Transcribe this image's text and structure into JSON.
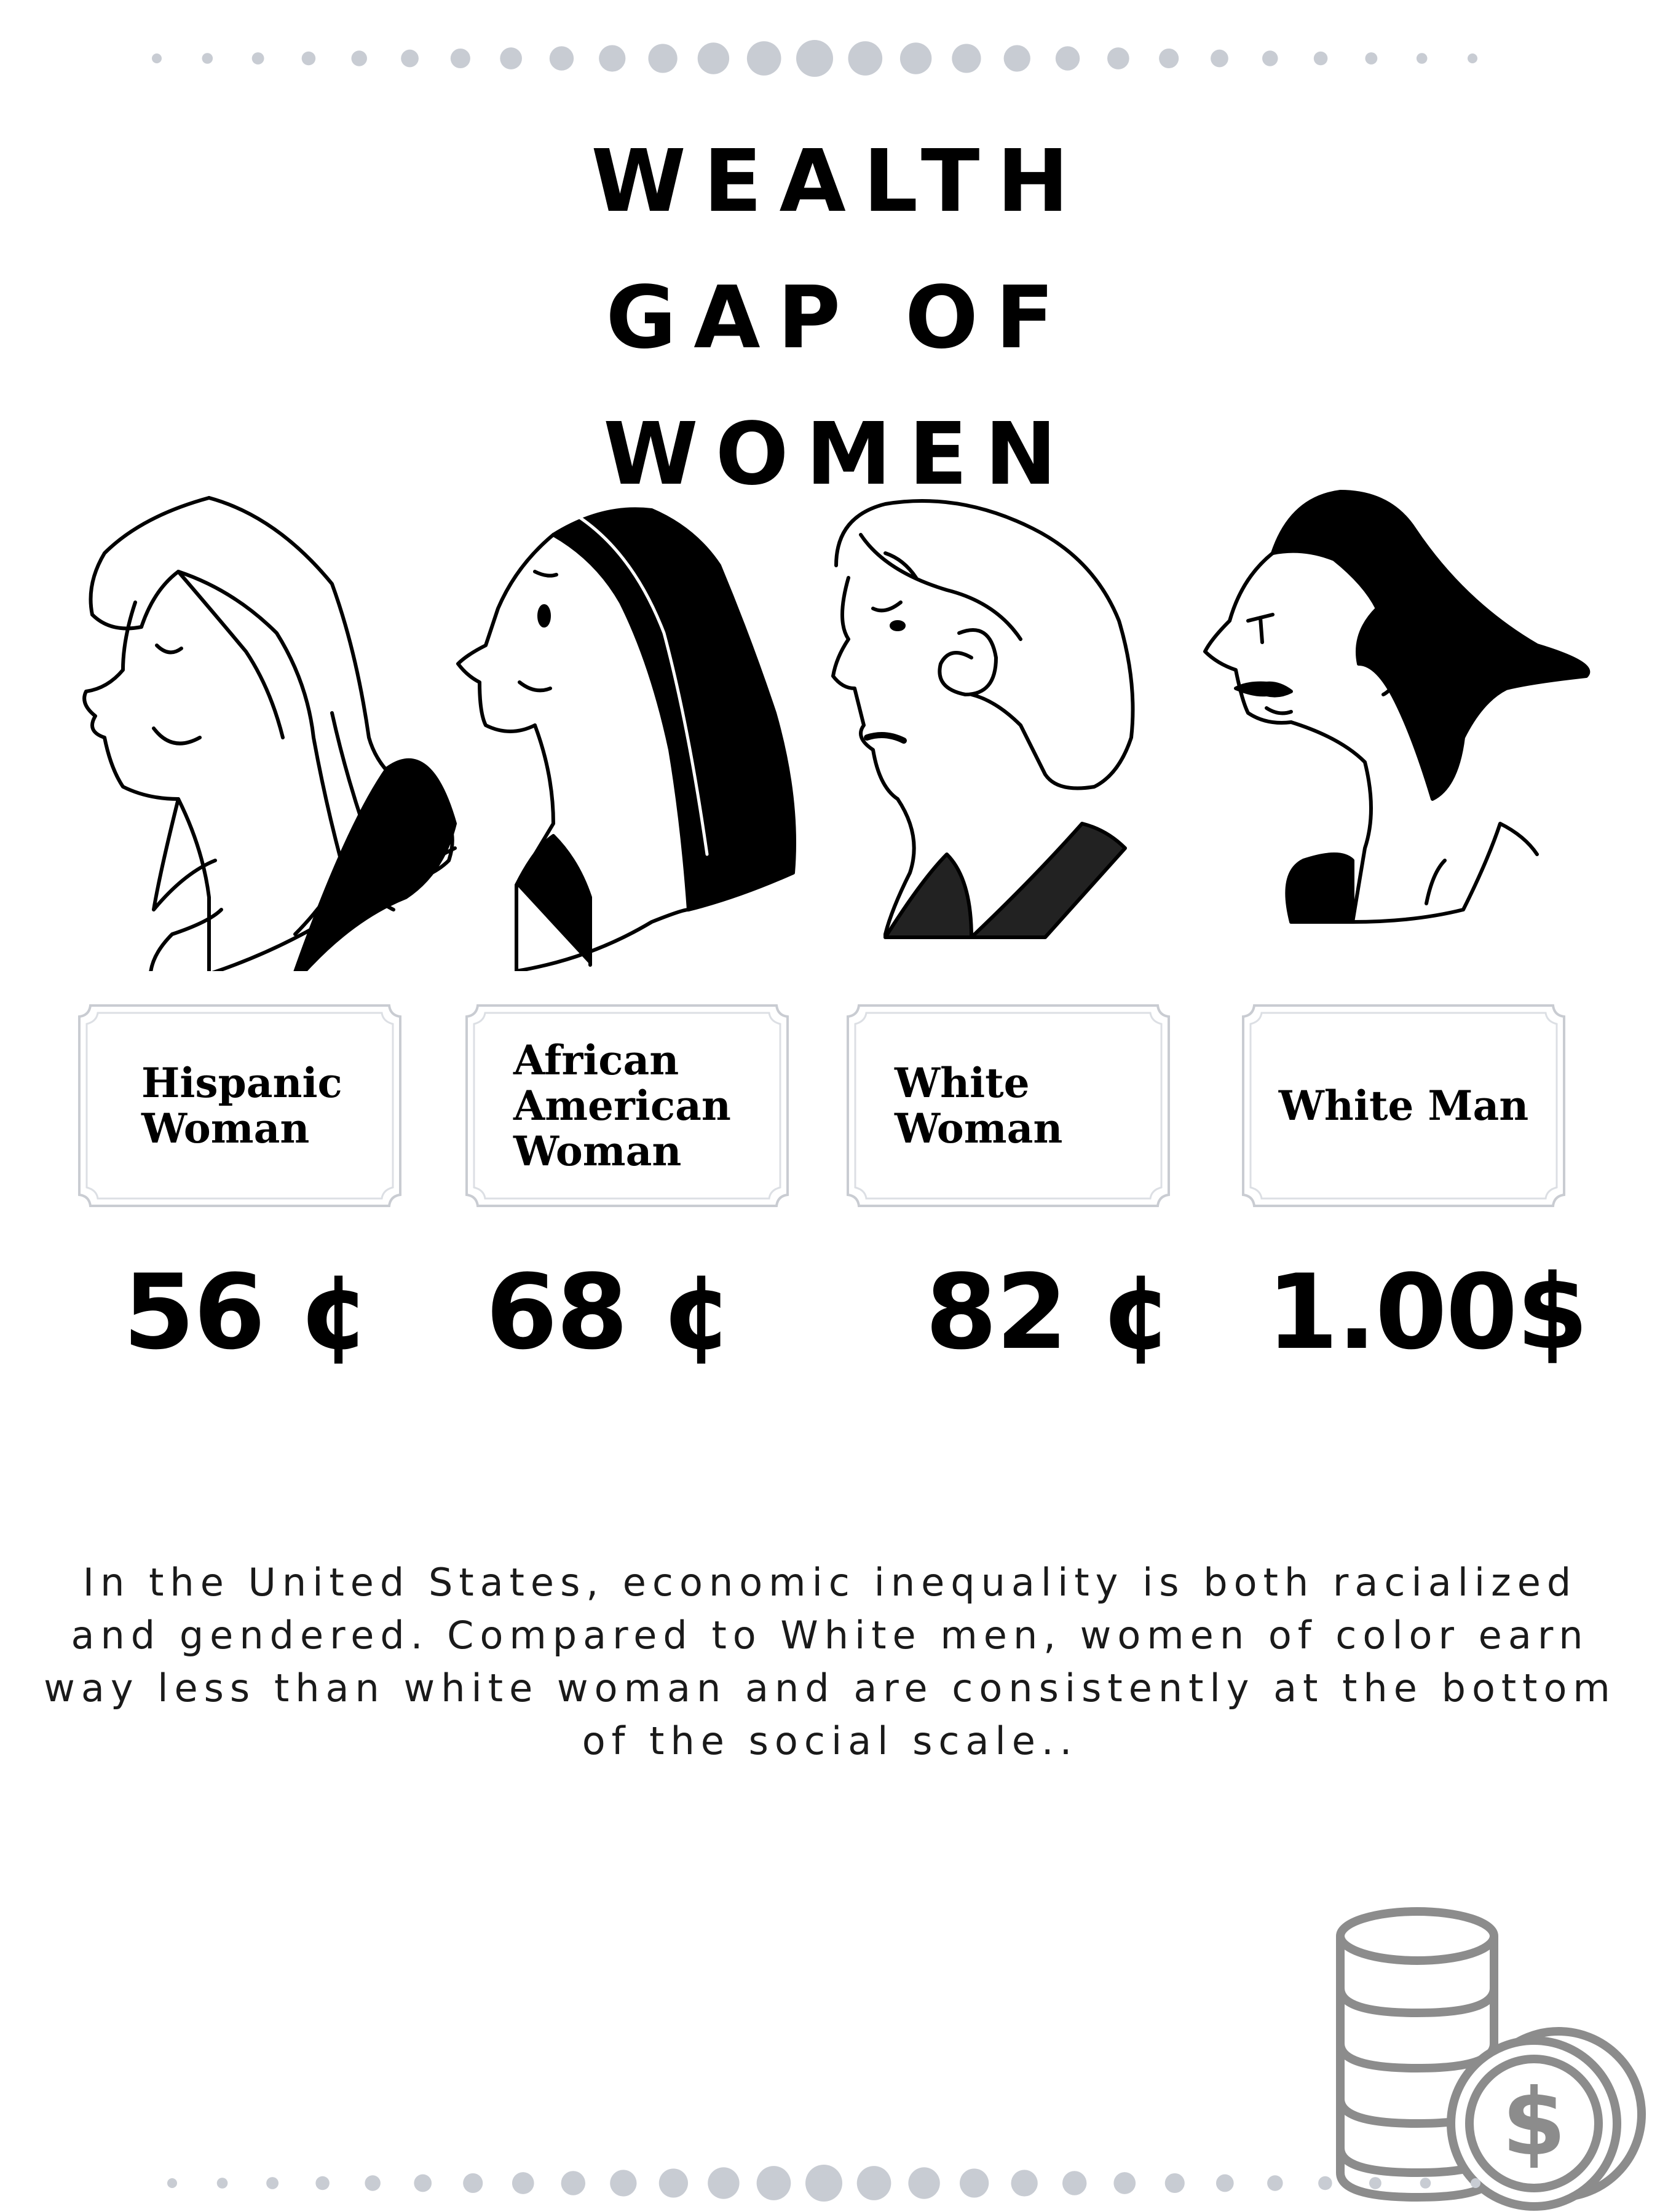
{
  "title": {
    "line1": "WEALTH",
    "line2": "GAP OF",
    "line3": "WOMEN"
  },
  "groups": [
    {
      "label_lines": [
        "Hispanic",
        "Woman"
      ],
      "amount": "56 ¢",
      "icon": "hispanic-woman-portrait"
    },
    {
      "label_lines": [
        "African",
        "American",
        "Woman"
      ],
      "amount": "68 ¢",
      "icon": "african-american-woman-portrait"
    },
    {
      "label_lines": [
        "White",
        "Woman"
      ],
      "amount": "82 ¢",
      "icon": "white-woman-portrait"
    },
    {
      "label_lines": [
        "White Man"
      ],
      "amount": "1.00$",
      "icon": "white-man-portrait"
    }
  ],
  "description": "In the United States, economic inequality is both racialized and gendered. Compared to White men, women of color earn way less than white woman and are consistently at the bottom of the social scale..",
  "decoration": {
    "dot_color": "#c8ccd3",
    "coin_color": "#8c8c8c",
    "coin_icon": "coin-stack-dollar-icon"
  }
}
